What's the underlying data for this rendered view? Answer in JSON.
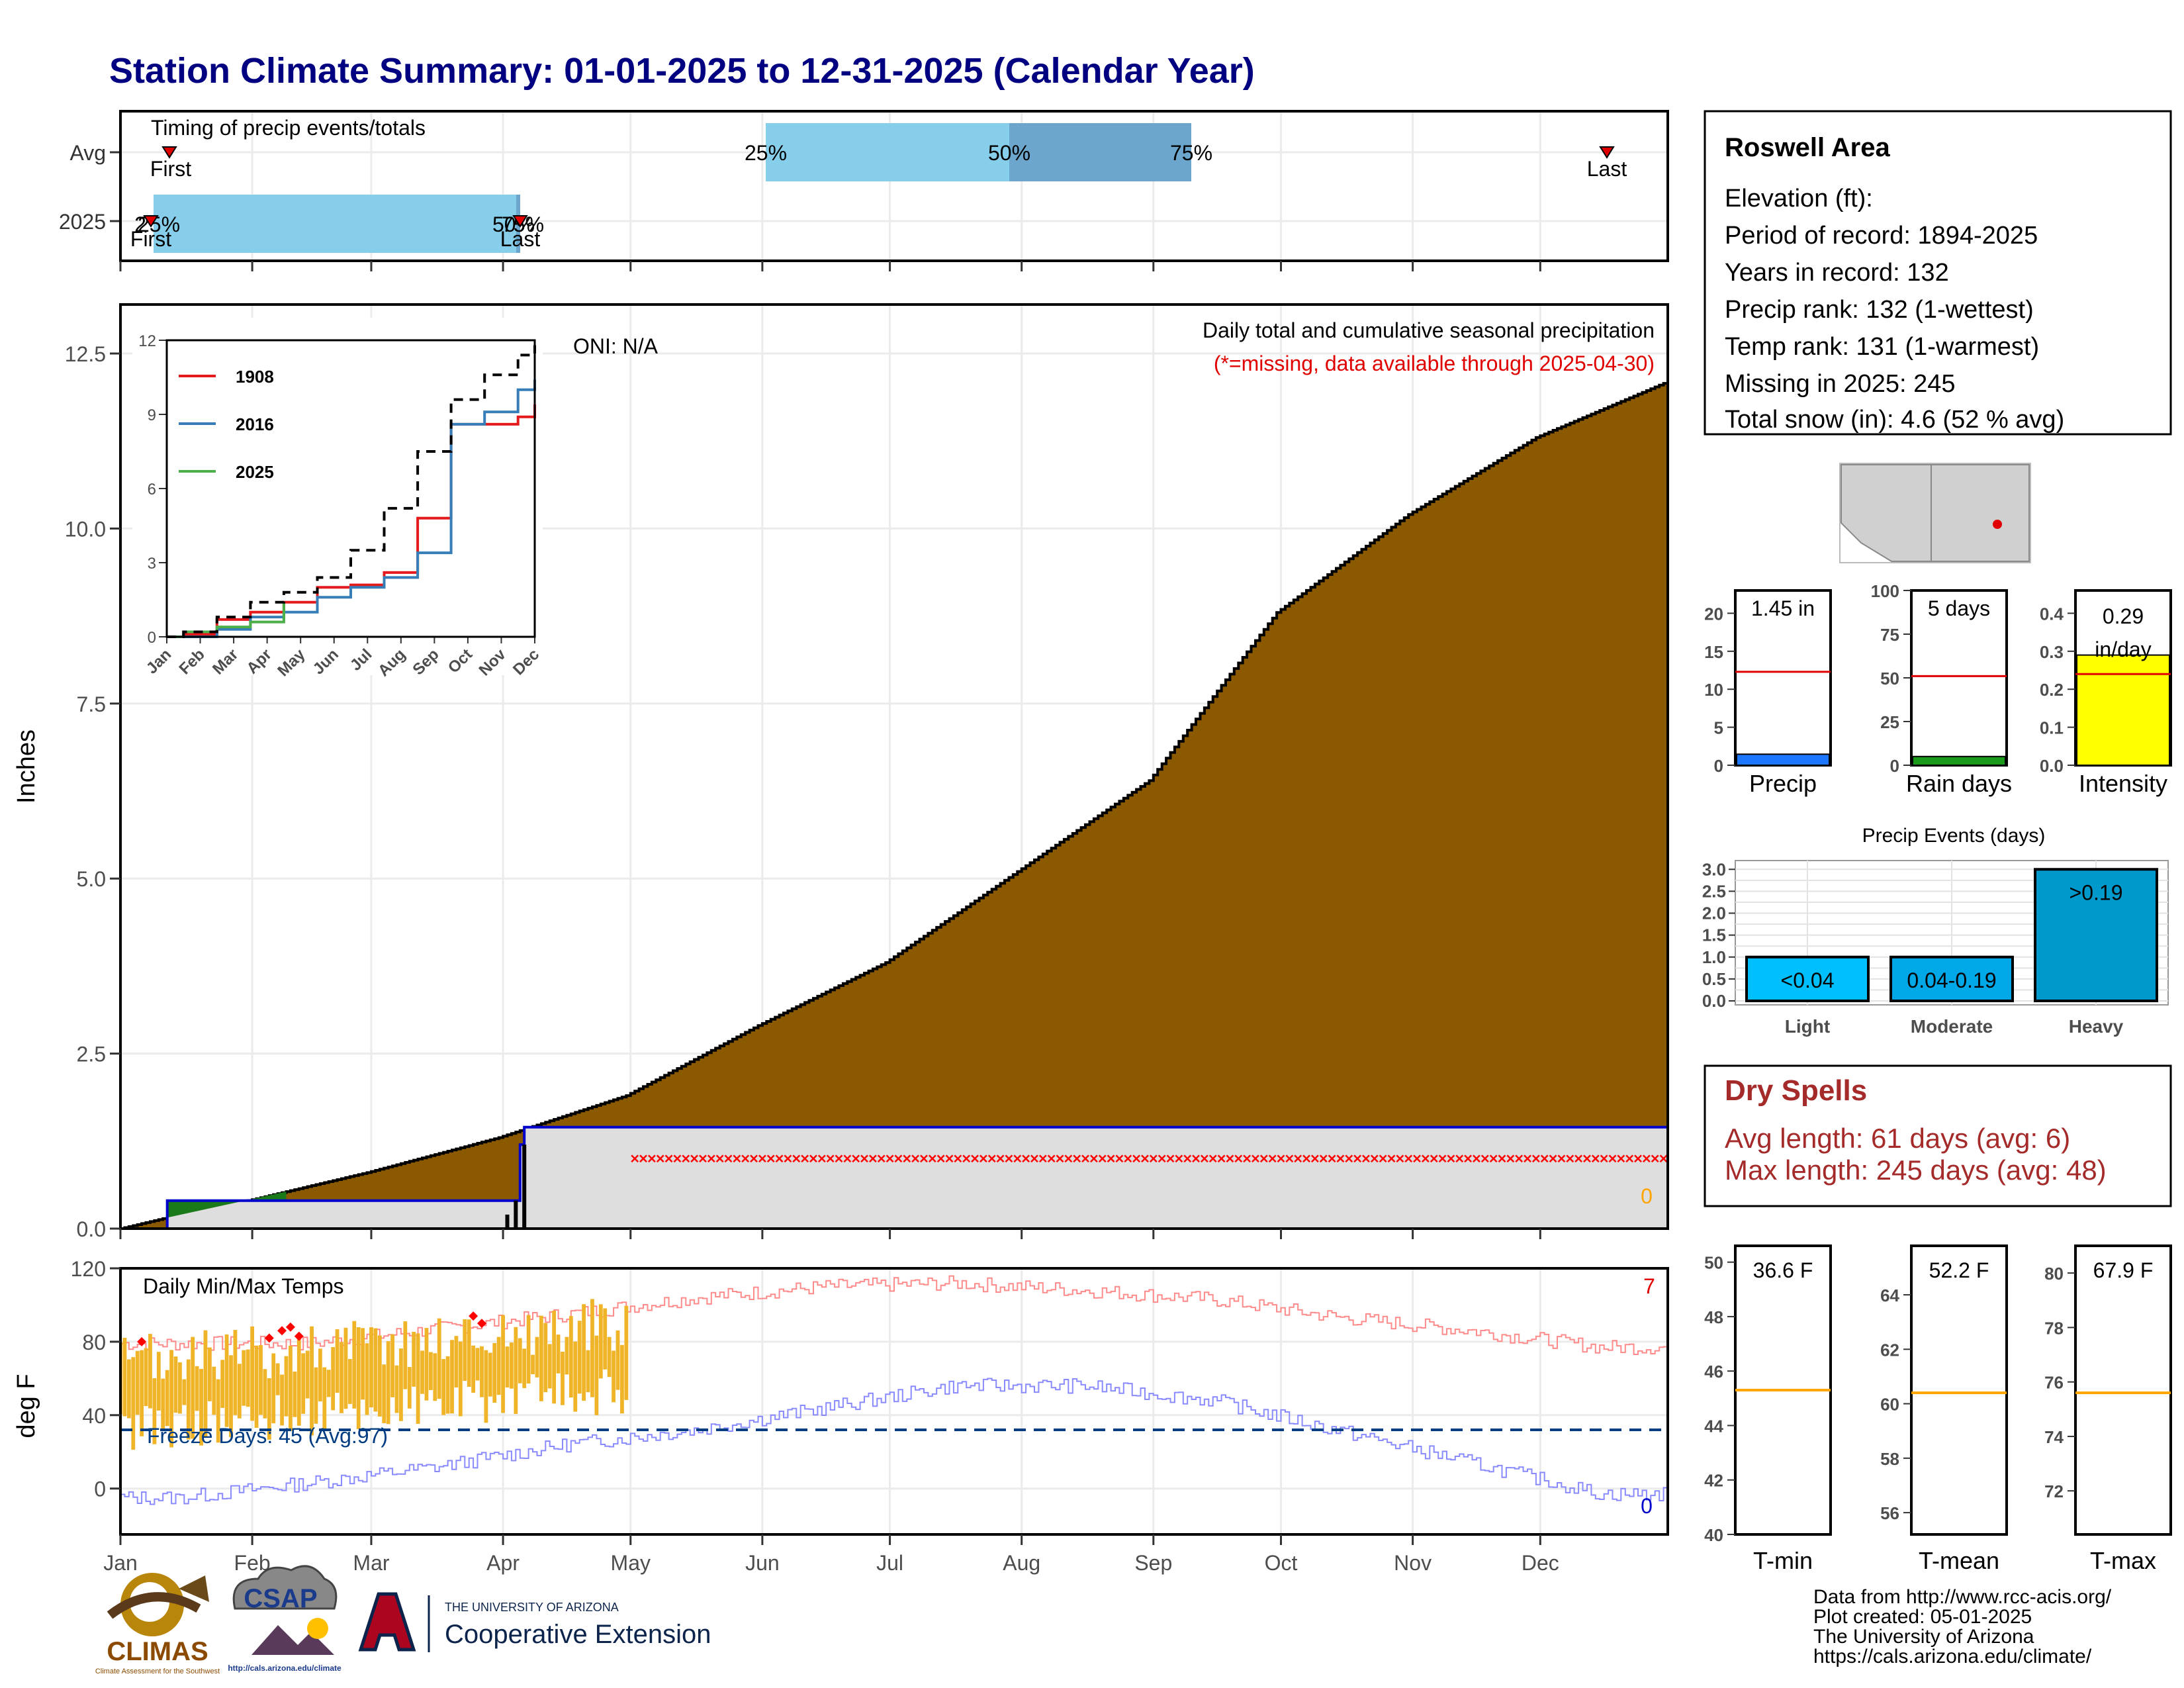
{
  "title": "Station Climate Summary: 01-01-2025 to 12-31-2025 (Calendar Year)",
  "timing": {
    "label": "Timing of precip events/totals",
    "rows": [
      "Avg",
      "2025"
    ],
    "first": "First",
    "last": "Last",
    "avg_pcts": [
      "25%",
      "50%",
      "75%"
    ],
    "y2025_pcts": [
      "25%",
      "50%",
      "75%"
    ],
    "y2025_first_overlay": "2",
    "y2025_last_overlay": "50%"
  },
  "main": {
    "ylabel": "Inches",
    "annotation1": "Daily total and cumulative seasonal precipitation",
    "annotation2": "(*=missing, data available through 2025-04-30)",
    "oni": "ONI: N/A",
    "corner_count": "0",
    "colors": {
      "cumulative_avg_fill": "#8B5A00",
      "year_line": "#0000CC",
      "missing": "#FF0000",
      "backdrop": "#DEDEDE",
      "early_fill": "#1A7A1A"
    }
  },
  "inset": {
    "legend": [
      "1908",
      "2016",
      "2025"
    ],
    "colors": [
      "#E41A1C",
      "#377EB8",
      "#4DAF4A"
    ],
    "months": [
      "Jan",
      "Feb",
      "Mar",
      "Apr",
      "May",
      "Jun",
      "Jul",
      "Aug",
      "Sep",
      "Oct",
      "Nov",
      "Dec"
    ],
    "yticks": [
      "0",
      "3",
      "6",
      "9",
      "12"
    ]
  },
  "temps": {
    "title": "Daily Min/Max Temps",
    "ylabel": "deg F",
    "freeze": "Freeze Days: 45 (Avg:97)",
    "count_top": "7",
    "count_bottom": "0",
    "months": [
      "Jan",
      "Feb",
      "Mar",
      "Apr",
      "May",
      "Jun",
      "Jul",
      "Aug",
      "Sep",
      "Oct",
      "Nov",
      "Dec"
    ]
  },
  "station": {
    "name": "Roswell Area",
    "lines": [
      "Elevation (ft):",
      "Period of record: 1894-2025",
      "Years in record: 132",
      "Precip rank: 132 (1-wettest)",
      "Temp rank: 131 (1-warmest)",
      "Missing in 2025: 245",
      "Total snow (in): 4.6 (52 % avg)"
    ]
  },
  "mini_bars": {
    "precip": {
      "value_label": "1.45 in",
      "label": "Precip",
      "yticks": [
        "0",
        "5",
        "10",
        "15",
        "20"
      ],
      "value": 1.45,
      "avg": 12.3,
      "max": 23
    },
    "rain_days": {
      "value_label": "5 days",
      "label": "Rain days",
      "yticks": [
        "0",
        "25",
        "50",
        "75",
        "100"
      ],
      "value": 5,
      "avg": 51,
      "max": 100
    },
    "intensity": {
      "value_label": "0.29",
      "value_label2": "in/day",
      "label": "Intensity",
      "yticks": [
        "0.0",
        "0.1",
        "0.2",
        "0.3",
        "0.4"
      ],
      "value": 0.29,
      "avg": 0.24,
      "max": 0.46
    }
  },
  "events": {
    "title": "Precip Events (days)",
    "yticks": [
      "0.0",
      "0.5",
      "1.0",
      "1.5",
      "2.0",
      "2.5",
      "3.0"
    ],
    "categories": [
      "Light",
      "Moderate",
      "Heavy"
    ],
    "bar_labels": [
      "<0.04",
      "0.04-0.19",
      ">0.19"
    ],
    "values": [
      1,
      1,
      3
    ]
  },
  "dry_spells": {
    "title": "Dry Spells",
    "avg": "Avg length: 61 days (avg: 6)",
    "max": "Max length: 245 days (avg: 48)"
  },
  "temp_boxes": {
    "tmin": {
      "value_label": "36.6 F",
      "label": "T-min",
      "yticks": [
        "40",
        "42",
        "44",
        "46",
        "48",
        "50"
      ],
      "avg": 45.3,
      "lo": 40,
      "hi": 50.6
    },
    "tmean": {
      "value_label": "52.2 F",
      "label": "T-mean",
      "yticks": [
        "56",
        "58",
        "60",
        "62",
        "64"
      ],
      "avg": 60.4,
      "lo": 55.2,
      "hi": 65.8
    },
    "tmax": {
      "value_label": "67.9 F",
      "label": "T-max",
      "yticks": [
        "72",
        "74",
        "76",
        "78",
        "80"
      ],
      "avg": 75.6,
      "lo": 70.4,
      "hi": 81
    }
  },
  "credits": [
    "Data from http://www.rcc-acis.org/",
    "Plot created: 05-01-2025",
    "The University of Arizona",
    "https://cals.arizona.edu/climate/"
  ],
  "logos": {
    "climas": "CLIMAS",
    "climas_sub": "Climate Assessment for the Southwest",
    "csap": "CSAP",
    "csap_url": "http://cals.arizona.edu/climate",
    "ua_small": "THE UNIVERSITY OF ARIZONA",
    "ua_big": "Cooperative Extension"
  },
  "chart_data": [
    {
      "type": "area",
      "title": "Daily total and cumulative seasonal precipitation",
      "ylabel": "Inches",
      "ylim": [
        0,
        13.2
      ],
      "x_categories": [
        "Jan",
        "Feb",
        "Mar",
        "Apr",
        "May",
        "Jun",
        "Jul",
        "Aug",
        "Sep",
        "Oct",
        "Nov",
        "Dec"
      ],
      "yticks": [
        0.0,
        2.5,
        5.0,
        7.5,
        10.0,
        12.5
      ],
      "series": [
        {
          "name": "cumulative average",
          "x_day": [
            1,
            15,
            31,
            59,
            90,
            120,
            151,
            181,
            212,
            243,
            273,
            304,
            334,
            365
          ],
          "values": [
            0.0,
            0.2,
            0.4,
            0.8,
            1.3,
            1.9,
            2.9,
            3.8,
            5.1,
            6.4,
            8.8,
            10.2,
            11.3,
            12.1
          ]
        },
        {
          "name": "2025",
          "x_day": [
            1,
            12,
            12,
            95,
            95,
            96,
            96,
            120,
            365
          ],
          "values": [
            0.0,
            0.1,
            0.4,
            0.4,
            1.2,
            1.2,
            1.45,
            1.45,
            1.45
          ]
        }
      ],
      "missing_range_days": [
        122,
        365
      ]
    },
    {
      "type": "line",
      "ylim": [
        0,
        12
      ],
      "x_categories": [
        "Jan",
        "Feb",
        "Mar",
        "Apr",
        "May",
        "Jun",
        "Jul",
        "Aug",
        "Sep",
        "Oct",
        "Nov",
        "Dec"
      ],
      "series": [
        {
          "name": "1908",
          "values": [
            0.1,
            0.7,
            1.0,
            1.4,
            2.0,
            2.1,
            2.6,
            4.8,
            8.6,
            8.6,
            8.9,
            9.4
          ]
        },
        {
          "name": "2016",
          "values": [
            0.0,
            0.3,
            0.8,
            1.0,
            1.6,
            2.0,
            2.4,
            3.4,
            8.6,
            9.1,
            10.0,
            10.4
          ]
        },
        {
          "name": "2025",
          "values": [
            0.2,
            0.4,
            0.6,
            1.4
          ]
        },
        {
          "name": "average",
          "values": [
            0.2,
            0.8,
            1.4,
            1.8,
            2.4,
            3.5,
            5.2,
            7.5,
            9.6,
            10.6,
            11.4,
            11.8
          ]
        }
      ]
    },
    {
      "type": "line",
      "title": "Daily Min/Max Temps",
      "ylabel": "deg F",
      "ylim": [
        -25,
        120
      ],
      "yticks": [
        0,
        40,
        80,
        120
      ],
      "freeze_line": 32,
      "avg_max_by_month": [
        79,
        79,
        87,
        95,
        104,
        110,
        112,
        108,
        103,
        93,
        86,
        77
      ],
      "avg_min_by_month": [
        -5,
        3,
        12,
        24,
        32,
        44,
        56,
        56,
        48,
        31,
        14,
        -3
      ],
      "observed_days": [
        1,
        120
      ]
    },
    {
      "type": "bar",
      "title": "Precip Events (days)",
      "categories": [
        "Light",
        "Moderate",
        "Heavy"
      ],
      "values": [
        1,
        1,
        3
      ],
      "ylim": [
        0,
        3.2
      ]
    }
  ]
}
